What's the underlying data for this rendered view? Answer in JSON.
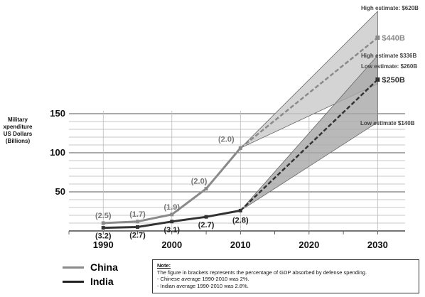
{
  "chart_data": {
    "type": "line",
    "xlabel": "",
    "ylabel": "Military expenditure US Dollars (Billions)",
    "x_ticks": [
      1990,
      2000,
      2010,
      2020,
      2030
    ],
    "y_ticks": [
      50,
      100,
      150
    ],
    "xlim": [
      1985,
      2034
    ],
    "ylim": [
      0,
      160
    ],
    "grid": true,
    "series": [
      {
        "name": "China",
        "color": "#8a8a8a",
        "points": [
          [
            1990,
            10
          ],
          [
            1995,
            12
          ],
          [
            2000,
            21
          ],
          [
            2005,
            54
          ],
          [
            2010,
            106
          ]
        ],
        "projection": {
          "x": [
            2010,
            2030
          ],
          "y": [
            106,
            440
          ],
          "label": "$440B"
        },
        "high_estimate": {
          "value": 620,
          "label": "High estimate: $620B"
        },
        "low_estimate": {
          "value": 260,
          "label": "Low estimate: $260B"
        },
        "gdp_labels": [
          {
            "x": 1990,
            "y": 10,
            "text": "(2.5)"
          },
          {
            "x": 1995,
            "y": 12,
            "text": "(1.7)"
          },
          {
            "x": 2000,
            "y": 21,
            "text": "(1.9)"
          },
          {
            "x": 2005,
            "y": 54,
            "text": "(2.0)"
          },
          {
            "x": 2010,
            "y": 106,
            "text": "(2.0)"
          }
        ]
      },
      {
        "name": "India",
        "color": "#333333",
        "points": [
          [
            1990,
            4
          ],
          [
            1995,
            5
          ],
          [
            2000,
            12
          ],
          [
            2005,
            18
          ],
          [
            2010,
            26
          ]
        ],
        "projection": {
          "x": [
            2010,
            2030
          ],
          "y": [
            26,
            250
          ],
          "label": "$250B"
        },
        "high_estimate": {
          "value": 336,
          "label": "High estimate $336B"
        },
        "low_estimate": {
          "value": 140,
          "label": "Low estimate $140B"
        },
        "gdp_labels": [
          {
            "x": 1990,
            "y": 4,
            "text": "(3.2)"
          },
          {
            "x": 1995,
            "y": 5,
            "text": "(2.7)"
          },
          {
            "x": 2000,
            "y": 12,
            "text": "(3.1)"
          },
          {
            "x": 2005,
            "y": 18,
            "text": "(2.7)"
          },
          {
            "x": 2010,
            "y": 26,
            "text": "(2.8)"
          }
        ]
      }
    ],
    "legend": [
      "China",
      "India"
    ],
    "legend_position": "bottom-left"
  },
  "labels": {
    "ylabel_lines": [
      "Military",
      "xpenditure",
      "US Dollars",
      "(Billions)"
    ]
  },
  "note": {
    "title": "Note:",
    "line1": "The figure in brackets represents the percentage of GDP absorbed by defense spending.",
    "line2": "- Chinese average 1990-2010 was 2%.",
    "line3": "- Indian average 1990-2010 was 2.8%."
  }
}
